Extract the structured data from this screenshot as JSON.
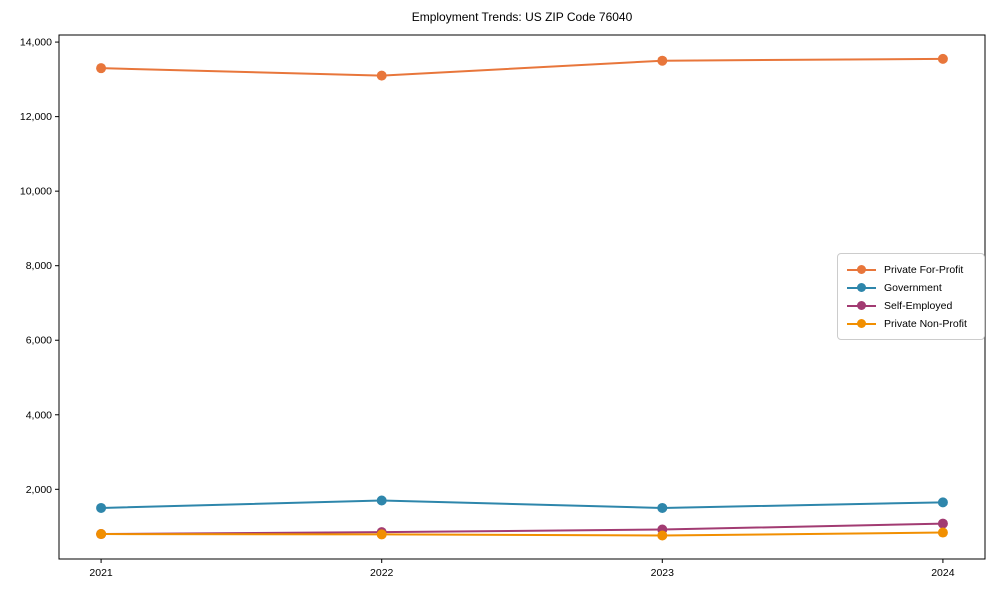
{
  "figure": {
    "background": "#ffffff",
    "axis_color": "#000000",
    "legend_border_color": "#cccccc",
    "legend_background": "#ffffff"
  },
  "chart_data": {
    "type": "line",
    "title": "Employment Trends: US ZIP Code 76040",
    "xlabel": "",
    "ylabel": "",
    "categories": [
      "2021",
      "2022",
      "2023",
      "2024"
    ],
    "series": [
      {
        "name": "Private For-Profit",
        "color": "#E8763B",
        "values": [
          13300,
          13100,
          13500,
          13550
        ]
      },
      {
        "name": "Government",
        "color": "#2E86AB",
        "values": [
          1500,
          1700,
          1500,
          1650
        ]
      },
      {
        "name": "Self-Employed",
        "color": "#A23B72",
        "values": [
          800,
          850,
          920,
          1080
        ]
      },
      {
        "name": "Private Non-Profit",
        "color": "#F18F01",
        "values": [
          800,
          790,
          760,
          840
        ]
      }
    ],
    "ylim": [
      130,
      14190
    ],
    "yticks": {
      "values": [
        2000,
        4000,
        6000,
        8000,
        10000,
        12000,
        14000
      ],
      "labels": [
        "2,000",
        "4,000",
        "6,000",
        "8,000",
        "10,000",
        "12,000",
        "14,000"
      ]
    },
    "grid": false,
    "marker": "circle",
    "marker_radius": 5,
    "line_width": 2,
    "legend": {
      "position": "center-right"
    }
  }
}
